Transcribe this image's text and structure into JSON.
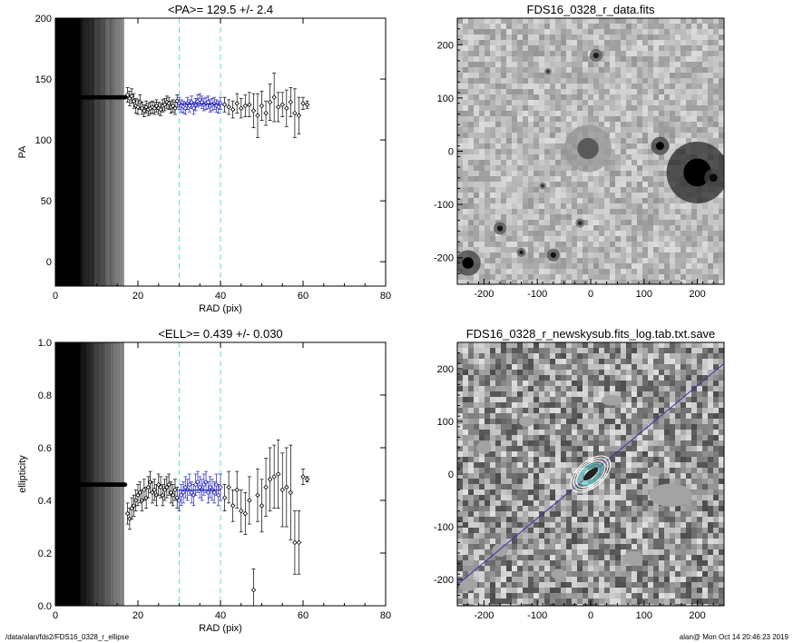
{
  "footer": {
    "path": "/data/alan/fds2/FDS16_0328_r_ellipse",
    "stamp": "alan@  Mon Oct 14 20:46:23 2019"
  },
  "colors": {
    "fit_line": "#2222bb",
    "window_lines": "#66dddd",
    "contours_inner": "#33cccc",
    "major_axis": "#3333aa"
  },
  "chart_data": [
    {
      "type": "scatter",
      "title": "<PA>= 129.5 +/-   2.4",
      "xlabel": "RAD (pix)",
      "ylabel": "PA",
      "xlim": [
        0,
        80
      ],
      "ylim": [
        -20,
        200
      ],
      "xticks": [
        0,
        20,
        40,
        60,
        80
      ],
      "yticks": [
        0,
        50,
        100,
        150,
        200
      ],
      "mean": 129.5,
      "fit_range": [
        30,
        40
      ],
      "inner_points": {
        "x_from": 1,
        "x_to": 17,
        "y": 135
      },
      "x": [
        17.5,
        18,
        18.5,
        19,
        19.5,
        20,
        20.5,
        21,
        21.5,
        22,
        22.5,
        23,
        23.5,
        24,
        24.5,
        25,
        25.5,
        26,
        26.5,
        27,
        27.5,
        28,
        28.5,
        29,
        29.5,
        30,
        30.5,
        31,
        31.5,
        32,
        32.5,
        33,
        33.5,
        34,
        34.5,
        35,
        35.5,
        36,
        36.5,
        37,
        37.5,
        38,
        38.5,
        39,
        39.5,
        40,
        41,
        42,
        43,
        44,
        45,
        46,
        47,
        48,
        49,
        50,
        51,
        52,
        53,
        54,
        55,
        56,
        57,
        58,
        59,
        60,
        61
      ],
      "y": [
        137,
        134,
        136,
        132,
        128,
        127,
        131,
        126,
        124,
        127,
        125,
        126,
        127,
        126,
        128,
        126,
        125,
        128,
        129,
        131,
        130,
        127,
        128,
        126,
        132,
        130,
        128,
        127,
        126,
        130,
        128,
        131,
        126,
        129,
        132,
        133,
        131,
        129,
        130,
        131,
        128,
        129,
        130,
        128,
        127,
        130,
        129,
        127,
        125,
        130,
        126,
        128,
        129,
        124,
        120,
        128,
        122,
        131,
        135,
        127,
        129,
        126,
        131,
        122,
        120,
        130,
        129
      ],
      "errors": [
        6,
        6,
        6,
        6,
        6,
        6,
        6,
        5,
        5,
        5,
        5,
        5,
        5,
        5,
        5,
        5,
        5,
        5,
        5,
        5,
        5,
        5,
        5,
        5,
        5,
        5,
        5,
        5,
        5,
        5,
        5,
        5,
        5,
        5,
        5,
        5,
        5,
        5,
        5,
        5,
        5,
        5,
        5,
        5,
        5,
        5,
        6,
        6,
        7,
        8,
        8,
        9,
        10,
        14,
        18,
        12,
        10,
        15,
        20,
        12,
        10,
        15,
        12,
        20,
        15,
        5,
        3
      ]
    },
    {
      "type": "image",
      "title": "FDS16_0328_r_data.fits",
      "xlim": [
        -250,
        250
      ],
      "ylim": [
        -250,
        250
      ],
      "xticks": [
        -200,
        -100,
        0,
        100,
        200
      ],
      "yticks": [
        -200,
        -100,
        0,
        100,
        200
      ]
    },
    {
      "type": "scatter",
      "title": "<ELL>= 0.439 +/-  0.030",
      "xlabel": "RAD (pix)",
      "ylabel": "ellipticity",
      "xlim": [
        0,
        80
      ],
      "ylim": [
        0,
        1.0
      ],
      "xticks": [
        0,
        20,
        40,
        60,
        80
      ],
      "yticks": [
        0.0,
        0.2,
        0.4,
        0.6,
        0.8,
        1.0
      ],
      "mean": 0.439,
      "fit_range": [
        30,
        40
      ],
      "inner_points": {
        "x_from": 1,
        "x_to": 17,
        "y": 0.46
      },
      "x": [
        17.5,
        18,
        18.5,
        19,
        19.5,
        20,
        20.5,
        21,
        21.5,
        22,
        22.5,
        23,
        23.5,
        24,
        24.5,
        25,
        25.5,
        26,
        26.5,
        27,
        27.5,
        28,
        28.5,
        29,
        29.5,
        30,
        30.5,
        31,
        31.5,
        32,
        32.5,
        33,
        33.5,
        34,
        34.5,
        35,
        35.5,
        36,
        36.5,
        37,
        37.5,
        38,
        38.5,
        39,
        39.5,
        40,
        41,
        42,
        43,
        44,
        45,
        46,
        47,
        48,
        49,
        50,
        51,
        52,
        53,
        54,
        55,
        56,
        57,
        58,
        59,
        60,
        61
      ],
      "y": [
        0.35,
        0.33,
        0.37,
        0.38,
        0.4,
        0.42,
        0.43,
        0.4,
        0.44,
        0.41,
        0.45,
        0.47,
        0.43,
        0.44,
        0.42,
        0.46,
        0.45,
        0.42,
        0.44,
        0.45,
        0.46,
        0.43,
        0.42,
        0.44,
        0.41,
        0.4,
        0.42,
        0.43,
        0.45,
        0.44,
        0.46,
        0.43,
        0.42,
        0.46,
        0.47,
        0.45,
        0.44,
        0.46,
        0.47,
        0.43,
        0.45,
        0.44,
        0.43,
        0.46,
        0.42,
        0.45,
        0.41,
        0.45,
        0.38,
        0.44,
        0.36,
        0.35,
        0.4,
        0.06,
        0.42,
        0.38,
        0.45,
        0.48,
        0.49,
        0.5,
        0.44,
        0.45,
        0.43,
        0.24,
        0.24,
        0.49,
        0.48
      ],
      "errors": [
        0.04,
        0.04,
        0.04,
        0.04,
        0.04,
        0.04,
        0.04,
        0.04,
        0.04,
        0.04,
        0.04,
        0.04,
        0.04,
        0.04,
        0.04,
        0.04,
        0.04,
        0.04,
        0.04,
        0.04,
        0.04,
        0.04,
        0.04,
        0.04,
        0.04,
        0.04,
        0.04,
        0.04,
        0.04,
        0.04,
        0.04,
        0.04,
        0.04,
        0.04,
        0.04,
        0.04,
        0.04,
        0.04,
        0.04,
        0.04,
        0.04,
        0.04,
        0.04,
        0.04,
        0.04,
        0.05,
        0.05,
        0.06,
        0.06,
        0.07,
        0.08,
        0.08,
        0.09,
        0.08,
        0.1,
        0.1,
        0.11,
        0.12,
        0.12,
        0.13,
        0.14,
        0.15,
        0.18,
        0.12,
        0.12,
        0.03,
        0.01
      ]
    },
    {
      "type": "image",
      "title": "FDS16_0328_r_newskysub.fits_log.tab.txt.save",
      "xlim": [
        -250,
        250
      ],
      "ylim": [
        -250,
        250
      ],
      "xticks": [
        -200,
        -100,
        0,
        100,
        200
      ],
      "yticks": [
        -200,
        -100,
        0,
        100,
        200
      ],
      "position_angle_deg": 129.5,
      "ellipticity": 0.439
    }
  ]
}
